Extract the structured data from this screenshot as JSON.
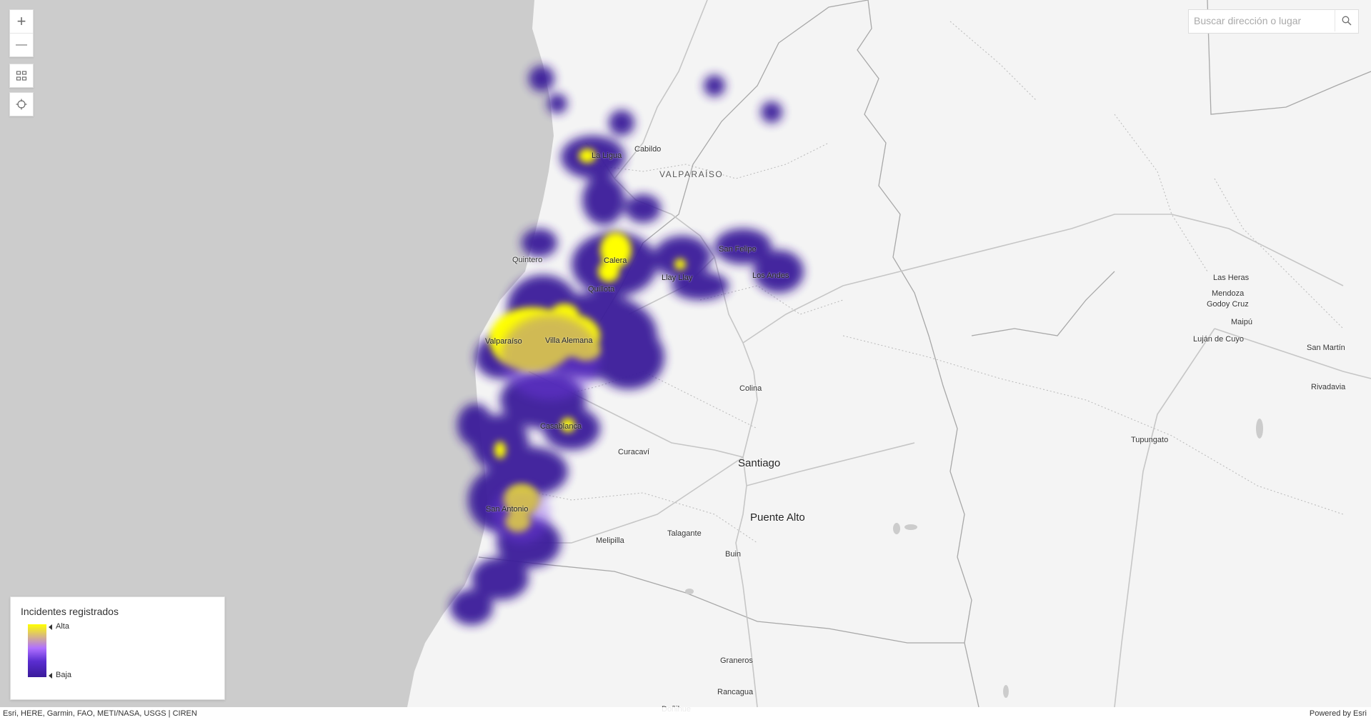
{
  "search": {
    "placeholder": "Buscar dirección o lugar"
  },
  "controls": {
    "zoom_in_label": "+",
    "zoom_out_label": "—"
  },
  "places": {
    "la_ligua": "La Ligua",
    "cabildo": "Cabildo",
    "valparaiso_region": "VALPARAÍSO",
    "quintero": "Quintero",
    "calera": "Calera",
    "san_felipe": "San Felipe",
    "llay_llay": "Llay Llay",
    "los_andes": "Los Andes",
    "quillota": "Quillota",
    "valparaiso": "Valparaíso",
    "villa_alemana": "Villa Alemana",
    "colina": "Colina",
    "casablanca": "Casablanca",
    "curacavi": "Curacaví",
    "santiago": "Santiago",
    "san_antonio": "San Antonio",
    "talagante": "Talagante",
    "puente_alto": "Puente Alto",
    "melipilla": "Melipilla",
    "buin": "Buin",
    "graneros": "Graneros",
    "rancagua": "Rancagua",
    "doñihue": "Doñihue",
    "las_heras": "Las Heras",
    "mendoza": "Mendoza",
    "godoy_cruz": "Godoy Cruz",
    "maipu": "Maipú",
    "lujan_de_cuyo": "Luján de Cuyo",
    "san_martin": "San Martín",
    "rivadavia": "Rivadavia",
    "tupungato": "Tupungato"
  },
  "legend": {
    "title": "Incidentes registrados",
    "high": "Alta",
    "low": "Baja"
  },
  "attribution": {
    "sources": "Esri, HERE, Garmin, FAO, METI/NASA, USGS | CIREN",
    "powered": "Powered by Esri"
  },
  "colors": {
    "ocean": "#cccccc",
    "land": "#f4f4f4",
    "heat_low": "#3a1a9a",
    "heat_high": "#ffff00"
  }
}
